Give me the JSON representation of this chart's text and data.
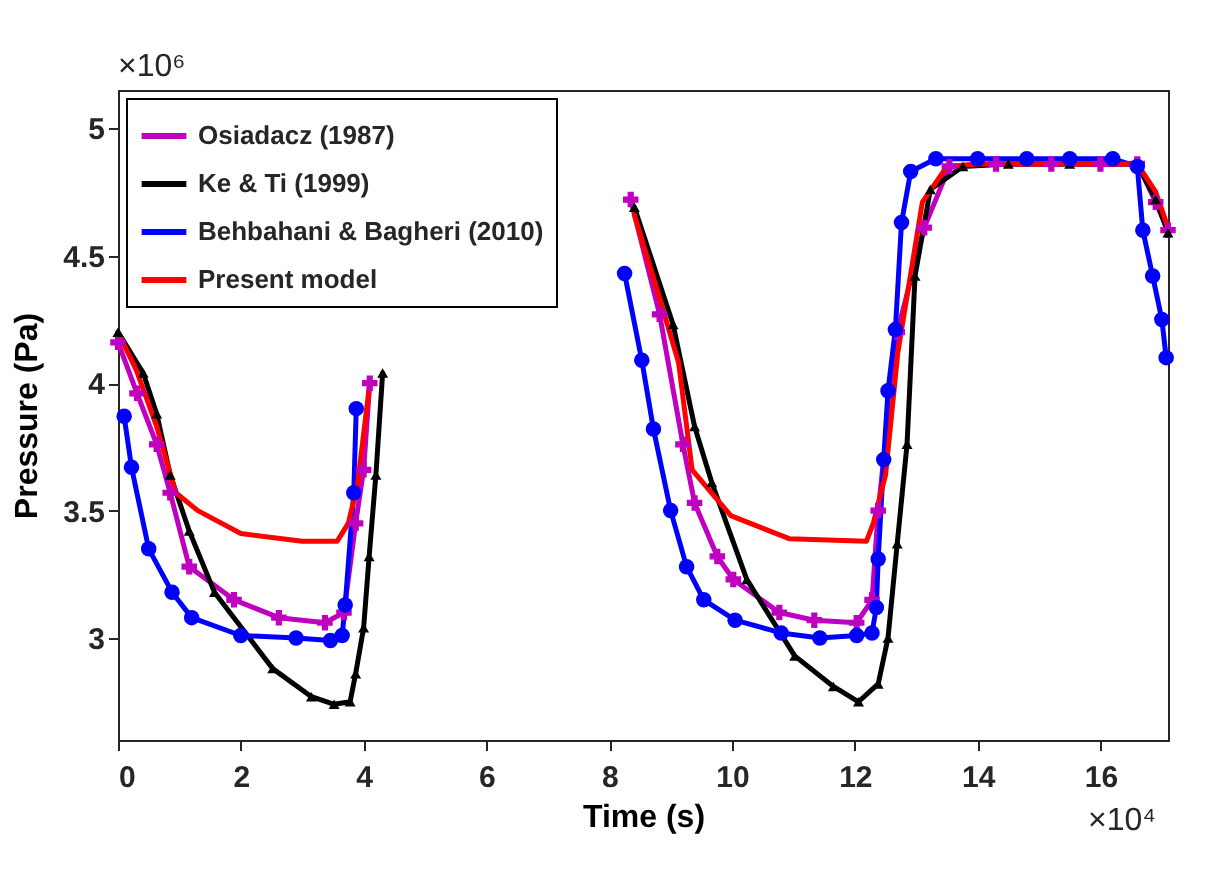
{
  "chart_data": {
    "type": "line",
    "xlabel": "Time (s)",
    "ylabel": "Pressure (Pa)",
    "xlim": [
      0,
      17.1
    ],
    "ylim": [
      2.6,
      5.15
    ],
    "xticks": [
      0,
      2,
      4,
      6,
      8,
      10,
      12,
      14,
      16
    ],
    "yticks": [
      3,
      3.5,
      4,
      4.5,
      5
    ],
    "legend": "top left",
    "annotations": [
      "×10⁶",
      "×10⁴"
    ],
    "series": [
      {
        "name": "Osiadacz (1987)",
        "color": "#bf00bf",
        "marker": "cross",
        "x": [
          0,
          0.31,
          0.63,
          0.85,
          1.16,
          1.89,
          2.62,
          3.37,
          3.68,
          3.87,
          4.0,
          4.1,
          4.2,
          8.35,
          8.82,
          9.2,
          9.39,
          9.76,
          10.02,
          10.77,
          11.34,
          12.03,
          12.28,
          12.38,
          12.69,
          13.13,
          13.54,
          14.3,
          15.2,
          16.0,
          16.6,
          16.9,
          17.1
        ],
        "values": [
          4.16,
          3.96,
          3.76,
          3.57,
          3.28,
          3.15,
          3.08,
          3.06,
          3.1,
          3.45,
          3.66,
          4.0,
          null,
          4.72,
          4.27,
          3.76,
          3.53,
          3.32,
          3.23,
          3.1,
          3.07,
          3.06,
          3.15,
          3.5,
          4.2,
          4.61,
          4.85,
          4.86,
          4.86,
          4.86,
          4.86,
          4.71,
          4.6
        ]
      },
      {
        "name": "Ke & Ti (1999)",
        "color": "#000000",
        "marker": "triangle",
        "x": [
          0,
          0.41,
          0.63,
          0.85,
          1.16,
          1.57,
          2.52,
          3.15,
          3.52,
          3.78,
          3.87,
          4.0,
          4.09,
          4.2,
          4.31,
          4.41,
          4.5,
          8.41,
          9.04,
          9.39,
          9.67,
          10.24,
          11.02,
          11.65,
          12.06,
          12.38,
          12.54,
          12.69,
          12.85,
          12.98,
          13.23,
          13.76,
          14.5,
          15.5,
          16.6,
          16.9,
          17.1
        ],
        "values": [
          4.2,
          4.04,
          3.88,
          3.64,
          3.42,
          3.18,
          2.88,
          2.77,
          2.74,
          2.75,
          2.86,
          3.04,
          3.32,
          3.64,
          4.04,
          null,
          null,
          4.69,
          4.23,
          3.83,
          3.61,
          3.23,
          2.93,
          2.81,
          2.75,
          2.82,
          3.0,
          3.37,
          3.76,
          4.42,
          4.76,
          4.85,
          4.86,
          4.86,
          4.86,
          4.72,
          4.59
        ]
      },
      {
        "name": "Behbahani & Bagheri (2010)",
        "color": "#0000ff",
        "marker": "circle",
        "x": [
          0.1,
          0.22,
          0.5,
          0.88,
          1.2,
          2.0,
          2.9,
          3.46,
          3.65,
          3.7,
          3.84,
          3.88,
          4.04,
          4.15,
          8.25,
          8.53,
          8.72,
          9.0,
          9.26,
          9.54,
          10.05,
          10.8,
          11.43,
          12.03,
          12.28,
          12.35,
          12.38,
          12.47,
          12.54,
          12.66,
          12.76,
          12.91,
          13.32,
          14.0,
          14.8,
          15.5,
          16.2,
          16.6,
          16.69,
          16.85,
          17.0,
          17.07
        ],
        "values": [
          3.87,
          3.67,
          3.35,
          3.18,
          3.08,
          3.01,
          3.0,
          2.99,
          3.01,
          3.13,
          3.57,
          3.9,
          null,
          null,
          4.43,
          4.09,
          3.82,
          3.5,
          3.28,
          3.15,
          3.07,
          3.02,
          3.0,
          3.01,
          3.02,
          3.12,
          3.31,
          3.7,
          3.97,
          4.21,
          4.63,
          4.83,
          4.88,
          4.88,
          4.88,
          4.88,
          4.88,
          4.85,
          4.6,
          4.42,
          4.25,
          4.1
        ]
      },
      {
        "name": "Present model",
        "color": "#ff0000",
        "marker": "none",
        "x": [
          0,
          0.3,
          0.63,
          0.94,
          1.3,
          2,
          3,
          3.57,
          3.75,
          3.9,
          4.1,
          4.3,
          4.4,
          8.41,
          8.8,
          9.13,
          9.35,
          9.98,
          10.93,
          12.19,
          12.3,
          12.5,
          12.7,
          13.1,
          13.5,
          14,
          15,
          16,
          16.6,
          16.9,
          17.1
        ],
        "values": [
          4.2,
          4.05,
          3.83,
          3.57,
          3.5,
          3.41,
          3.38,
          3.38,
          3.45,
          3.6,
          4.0,
          null,
          null,
          4.66,
          4.35,
          4.08,
          3.66,
          3.48,
          3.39,
          3.38,
          3.45,
          3.64,
          4.12,
          4.71,
          4.85,
          4.86,
          4.86,
          4.86,
          4.86,
          4.75,
          4.61
        ]
      }
    ]
  }
}
